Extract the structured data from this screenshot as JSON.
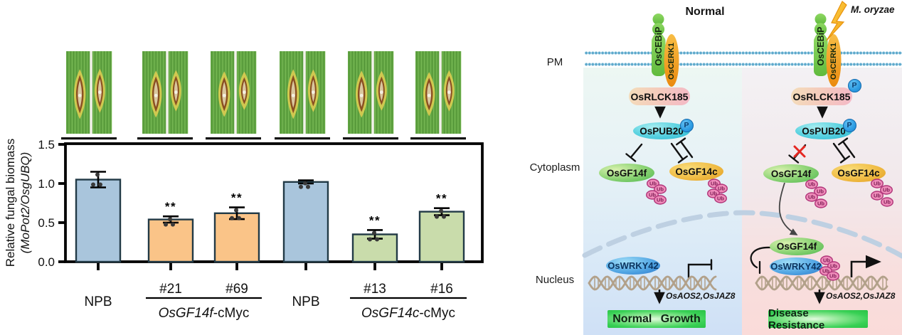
{
  "chart_data": {
    "type": "bar",
    "title": "",
    "ylabel_line1": "Relative fungal biomass",
    "ylabel_line2": "(MoPot2/OsgUBQ)",
    "yticks": [
      "0.0",
      "0.5",
      "1.0",
      "1.5"
    ],
    "ylim": [
      0,
      1.5
    ],
    "categories": [
      "NPB",
      "#21",
      "#69",
      "NPB",
      "#13",
      "#16"
    ],
    "values": [
      1.05,
      0.54,
      0.62,
      1.02,
      0.35,
      0.64
    ],
    "errors": [
      0.1,
      0.04,
      0.075,
      0.02,
      0.055,
      0.045
    ],
    "significance": [
      "",
      "**",
      "**",
      "",
      "**",
      "**"
    ],
    "bar_colors": [
      "#a9c5dc",
      "#fac488",
      "#fac488",
      "#a9c5dc",
      "#c9dcab",
      "#c9dcab"
    ],
    "bar_border_color": "#223a46",
    "groups": [
      {
        "italic": "OsGF14f",
        "suffix": "-cMyc",
        "members": [
          1,
          2
        ]
      },
      {
        "italic": "OsGF14c",
        "suffix": "-cMyc",
        "members": [
          4,
          5
        ]
      }
    ],
    "grid": false,
    "legend_position": "none"
  },
  "leaf_photos": {
    "count": 6
  },
  "diagram": {
    "compartments": {
      "pm": "PM",
      "cytoplasm": "Cytoplasm",
      "nucleus": "Nucleus"
    },
    "conditions": {
      "left": "Normal",
      "right": "M. oryzae"
    },
    "proteins": {
      "receptor1": "OsCEBiP",
      "receptor2": "OsCERK1",
      "kinase": "OsRLCK185",
      "ligase": "OsPUB20",
      "gf14f": "OsGF14f",
      "gf14c": "OsGF14c",
      "tf": "OsWRKY42"
    },
    "badges": {
      "phospho": "P",
      "ubiquitin": "Ub"
    },
    "genes": "OsAOS2,OsJAZ8",
    "outcomes": {
      "left": "Normal Growth",
      "right": "Disease Resistance"
    }
  },
  "colors": {
    "bar_blue": "#a9c5dc",
    "bar_orange": "#fac488",
    "bar_green": "#c9dcab",
    "pub20_cyan": "#2ab8d2",
    "gf14f_green": "#4cb64d",
    "gf14c_orange": "#e19c1e",
    "wrky42_blue": "#2a78cc",
    "ub_pink": "#ef8cba",
    "phospho_blue": "#2e9de3",
    "outcome_green": "#2fcf49",
    "membrane_blue": "#5ea9cc",
    "red_x": "#e52620",
    "dna_tan": "#b2a18a",
    "envelope_blue": "#bed0e2"
  }
}
